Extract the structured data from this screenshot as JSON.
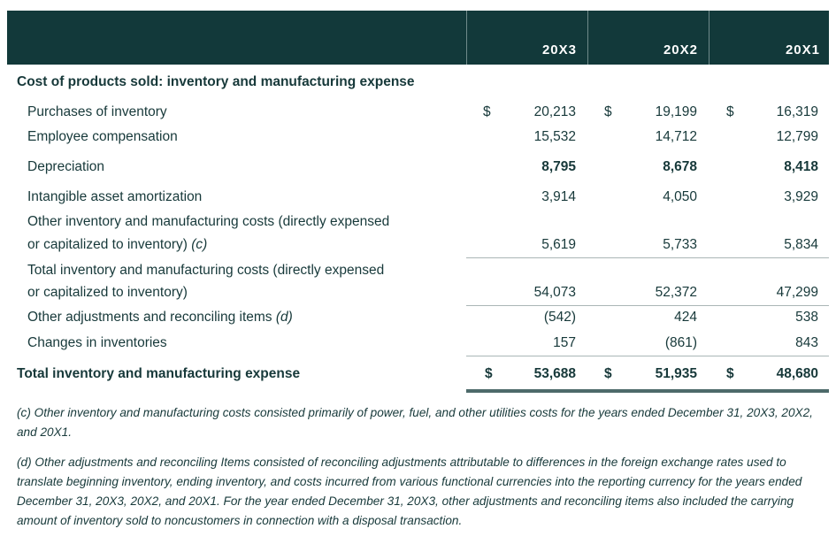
{
  "header": {
    "years": [
      "20X3",
      "20X2",
      "20X1"
    ]
  },
  "section_title": "Cost of products sold: inventory and manufacturing expense",
  "rows": [
    {
      "label": "Purchases of inventory",
      "values": [
        "20,213",
        "19,199",
        "16,319"
      ],
      "dollar": true
    },
    {
      "label": "Employee compensation",
      "values": [
        "15,532",
        "14,712",
        "12,799"
      ]
    },
    {
      "label": "Depreciation",
      "values": [
        "8,795",
        "8,678",
        "8,418"
      ]
    },
    {
      "label": "Intangible asset amortization",
      "values": [
        "3,914",
        "4,050",
        "3,929"
      ]
    },
    {
      "label": "Other inventory and manufacturing costs (directly expensed",
      "label2": "or capitalized to inventory)",
      "note": "(c)",
      "values": [
        "5,619",
        "5,733",
        "5,834"
      ]
    },
    {
      "label": "Total inventory and manufacturing costs (directly expensed",
      "label2": "or capitalized to inventory)",
      "values": [
        "54,073",
        "52,372",
        "47,299"
      ]
    },
    {
      "label": "Other adjustments and reconciling items",
      "note": "(d)",
      "values": [
        "(542)",
        "424",
        "538"
      ]
    },
    {
      "label": "Changes in inventories",
      "values": [
        "157",
        "(861)",
        "843"
      ]
    }
  ],
  "total": {
    "label": "Total inventory and manufacturing expense",
    "values": [
      "53,688",
      "51,935",
      "48,680"
    ]
  },
  "currency_symbol": "$",
  "footnotes": [
    "(c) Other inventory and manufacturing costs consisted primarily of power, fuel, and other utilities costs for the years ended December 31, 20X3, 20X2, and 20X1.",
    "(d) Other adjustments and reconciling Items consisted of reconciling adjustments attributable to differences in the foreign exchange rates used to translate beginning inventory, ending inventory, and costs incurred from various functional currencies into the reporting currency for the years ended December 31, 20X3, 20X2, and 20X1. For the year ended December 31, 20X3, other adjustments and reconciling items also included the carrying amount of inventory sold to noncustomers in connection with a disposal transaction."
  ],
  "colors": {
    "header_bg": "#12393a",
    "text": "#17393a"
  }
}
